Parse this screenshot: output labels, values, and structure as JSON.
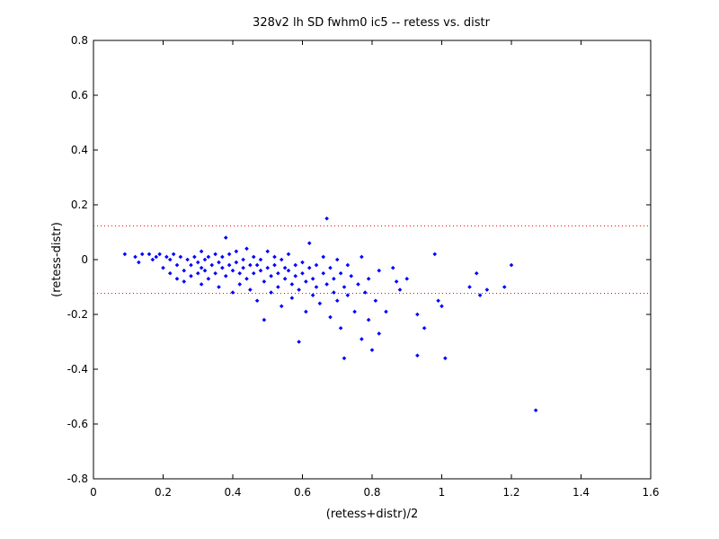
{
  "chart_data": {
    "type": "scatter",
    "title": "328v2 lh SD fwhm0 ic5 -- retess vs. distr",
    "xlabel": "(retess+distr)/2",
    "ylabel": "(retess-distr)",
    "xlim": [
      0,
      1.6
    ],
    "ylim": [
      -0.8,
      0.8
    ],
    "x_ticks": [
      "0",
      "0.2",
      "0.4",
      "0.6",
      "0.8",
      "1",
      "1.2",
      "1.4",
      "1.6"
    ],
    "y_ticks": [
      "0.8",
      "0.6",
      "0.4",
      "0.2",
      "0",
      "-0.2",
      "-0.4",
      "-0.6",
      "-0.8"
    ],
    "grid": false,
    "reference_lines": [
      0.123,
      -0.123
    ],
    "colors": {
      "points": "#0000ff",
      "reference_lines": "#ff0000"
    },
    "series": [
      {
        "points": [
          [
            0.09,
            0.02
          ],
          [
            0.12,
            0.01
          ],
          [
            0.13,
            -0.01
          ],
          [
            0.14,
            0.02
          ],
          [
            0.16,
            0.02
          ],
          [
            0.17,
            0.0
          ],
          [
            0.18,
            0.01
          ],
          [
            0.19,
            0.02
          ],
          [
            0.2,
            -0.03
          ],
          [
            0.21,
            0.01
          ],
          [
            0.22,
            0.0
          ],
          [
            0.22,
            -0.05
          ],
          [
            0.23,
            0.02
          ],
          [
            0.24,
            -0.02
          ],
          [
            0.24,
            -0.07
          ],
          [
            0.25,
            0.01
          ],
          [
            0.26,
            -0.04
          ],
          [
            0.26,
            -0.08
          ],
          [
            0.27,
            0.0
          ],
          [
            0.28,
            -0.02
          ],
          [
            0.28,
            -0.06
          ],
          [
            0.29,
            0.01
          ],
          [
            0.3,
            -0.01
          ],
          [
            0.3,
            -0.05
          ],
          [
            0.31,
            0.03
          ],
          [
            0.31,
            -0.03
          ],
          [
            0.31,
            -0.09
          ],
          [
            0.32,
            0.0
          ],
          [
            0.32,
            -0.04
          ],
          [
            0.33,
            0.01
          ],
          [
            0.33,
            -0.07
          ],
          [
            0.34,
            -0.02
          ],
          [
            0.35,
            0.02
          ],
          [
            0.35,
            -0.05
          ],
          [
            0.36,
            -0.01
          ],
          [
            0.36,
            -0.1
          ],
          [
            0.37,
            0.01
          ],
          [
            0.37,
            -0.03
          ],
          [
            0.38,
            -0.06
          ],
          [
            0.38,
            0.08
          ],
          [
            0.39,
            0.02
          ],
          [
            0.39,
            -0.02
          ],
          [
            0.4,
            -0.04
          ],
          [
            0.4,
            -0.12
          ],
          [
            0.41,
            0.03
          ],
          [
            0.41,
            -0.01
          ],
          [
            0.42,
            -0.05
          ],
          [
            0.42,
            -0.09
          ],
          [
            0.43,
            0.0
          ],
          [
            0.43,
            -0.03
          ],
          [
            0.44,
            -0.07
          ],
          [
            0.44,
            0.04
          ],
          [
            0.45,
            -0.02
          ],
          [
            0.45,
            -0.11
          ],
          [
            0.46,
            0.01
          ],
          [
            0.46,
            -0.05
          ],
          [
            0.47,
            -0.02
          ],
          [
            0.47,
            -0.15
          ],
          [
            0.48,
            0.0
          ],
          [
            0.48,
            -0.04
          ],
          [
            0.49,
            -0.08
          ],
          [
            0.49,
            -0.22
          ],
          [
            0.5,
            0.03
          ],
          [
            0.5,
            -0.03
          ],
          [
            0.51,
            -0.06
          ],
          [
            0.51,
            -0.12
          ],
          [
            0.52,
            0.01
          ],
          [
            0.52,
            -0.02
          ],
          [
            0.53,
            -0.05
          ],
          [
            0.53,
            -0.1
          ],
          [
            0.54,
            0.0
          ],
          [
            0.54,
            -0.17
          ],
          [
            0.55,
            -0.03
          ],
          [
            0.55,
            -0.07
          ],
          [
            0.56,
            0.02
          ],
          [
            0.56,
            -0.04
          ],
          [
            0.57,
            -0.09
          ],
          [
            0.57,
            -0.14
          ],
          [
            0.58,
            -0.02
          ],
          [
            0.58,
            -0.06
          ],
          [
            0.59,
            -0.11
          ],
          [
            0.59,
            -0.3
          ],
          [
            0.6,
            -0.01
          ],
          [
            0.6,
            -0.05
          ],
          [
            0.61,
            -0.08
          ],
          [
            0.61,
            -0.19
          ],
          [
            0.62,
            0.06
          ],
          [
            0.62,
            -0.03
          ],
          [
            0.63,
            -0.07
          ],
          [
            0.63,
            -0.13
          ],
          [
            0.64,
            -0.02
          ],
          [
            0.64,
            -0.1
          ],
          [
            0.65,
            -0.16
          ],
          [
            0.66,
            0.01
          ],
          [
            0.66,
            -0.05
          ],
          [
            0.67,
            0.15
          ],
          [
            0.67,
            -0.09
          ],
          [
            0.68,
            -0.03
          ],
          [
            0.68,
            -0.21
          ],
          [
            0.69,
            -0.07
          ],
          [
            0.69,
            -0.12
          ],
          [
            0.7,
            0.0
          ],
          [
            0.7,
            -0.15
          ],
          [
            0.71,
            -0.05
          ],
          [
            0.71,
            -0.25
          ],
          [
            0.72,
            -0.1
          ],
          [
            0.72,
            -0.36
          ],
          [
            0.73,
            -0.02
          ],
          [
            0.73,
            -0.13
          ],
          [
            0.74,
            -0.06
          ],
          [
            0.75,
            -0.19
          ],
          [
            0.76,
            -0.09
          ],
          [
            0.77,
            0.01
          ],
          [
            0.77,
            -0.29
          ],
          [
            0.78,
            -0.12
          ],
          [
            0.79,
            -0.07
          ],
          [
            0.79,
            -0.22
          ],
          [
            0.8,
            -0.33
          ],
          [
            0.81,
            -0.15
          ],
          [
            0.82,
            -0.04
          ],
          [
            0.82,
            -0.27
          ],
          [
            0.84,
            -0.19
          ],
          [
            0.86,
            -0.03
          ],
          [
            0.87,
            -0.08
          ],
          [
            0.88,
            -0.11
          ],
          [
            0.9,
            -0.07
          ],
          [
            0.93,
            -0.2
          ],
          [
            0.93,
            -0.35
          ],
          [
            0.95,
            -0.25
          ],
          [
            0.98,
            0.02
          ],
          [
            0.99,
            -0.15
          ],
          [
            1.0,
            -0.17
          ],
          [
            1.01,
            -0.36
          ],
          [
            1.08,
            -0.1
          ],
          [
            1.1,
            -0.05
          ],
          [
            1.11,
            -0.13
          ],
          [
            1.13,
            -0.11
          ],
          [
            1.18,
            -0.1
          ],
          [
            1.2,
            -0.02
          ],
          [
            1.27,
            -0.55
          ]
        ]
      }
    ]
  }
}
